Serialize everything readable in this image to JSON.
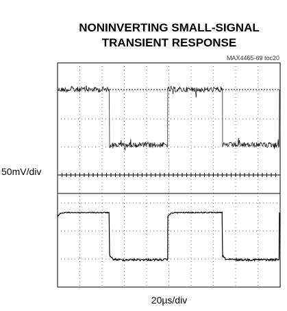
{
  "title_lines": [
    "NONINVERTING SMALL-SIGNAL",
    "TRANSIENT RESPONSE"
  ],
  "figure_id": "MAX4465-69 toc20",
  "y_scale_label": "50mV/div",
  "x_scale_label": "20µs/div"
}
